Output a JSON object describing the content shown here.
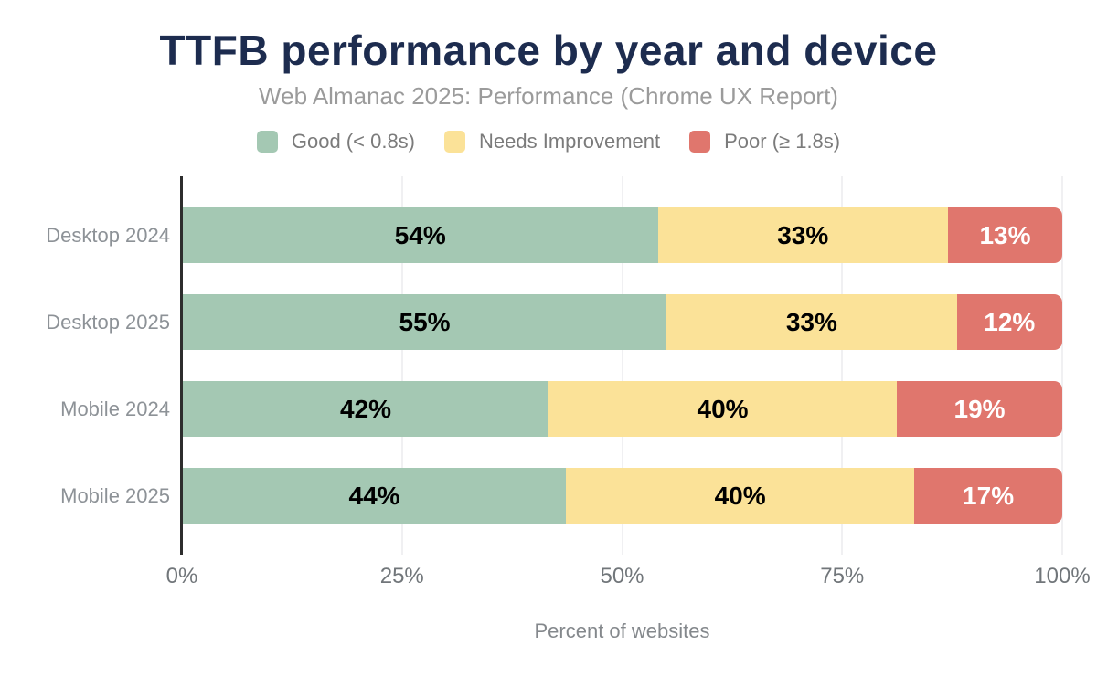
{
  "header": {
    "title": "TTFB performance by year and device",
    "subtitle": "Web Almanac 2025: Performance (Chrome UX Report)"
  },
  "legend": [
    {
      "label": "Good (< 0.8s)",
      "color": "#a4c8b3"
    },
    {
      "label": "Needs Improvement",
      "color": "#fbe298"
    },
    {
      "label": "Poor (≥ 1.8s)",
      "color": "#e0766d"
    }
  ],
  "colors": {
    "good": "#a4c8b3",
    "needs_improvement": "#fbe298",
    "poor": "#e0766d",
    "title": "#1d2c4f",
    "subtitle": "#9b9b9b",
    "axis_line": "#2d2d2d",
    "gridline": "#f0f0f2",
    "category_label": "#8d9297",
    "tick_label": "#71767a"
  },
  "chart_data": {
    "type": "bar",
    "orientation": "horizontal",
    "stacked": true,
    "title": "TTFB performance by year and device",
    "subtitle": "Web Almanac 2025: Performance (Chrome UX Report)",
    "categories": [
      "Desktop 2024",
      "Desktop 2025",
      "Mobile 2024",
      "Mobile 2025"
    ],
    "series": [
      {
        "name": "Good (< 0.8s)",
        "color": "#a4c8b3",
        "label_color": "#000000",
        "values": [
          54,
          55,
          42,
          44
        ]
      },
      {
        "name": "Needs Improvement",
        "color": "#fbe298",
        "label_color": "#000000",
        "values": [
          33,
          33,
          40,
          40
        ]
      },
      {
        "name": "Poor (≥ 1.8s)",
        "color": "#e0766d",
        "label_color": "#ffffff",
        "values": [
          13,
          12,
          19,
          17
        ]
      }
    ],
    "data_labels": [
      [
        "54%",
        "33%",
        "13%"
      ],
      [
        "55%",
        "33%",
        "12%"
      ],
      [
        "42%",
        "40%",
        "19%"
      ],
      [
        "44%",
        "40%",
        "17%"
      ]
    ],
    "xlabel": "Percent of websites",
    "x_ticks": [
      "0%",
      "25%",
      "50%",
      "75%",
      "100%"
    ],
    "xlim": [
      0,
      100
    ],
    "grid": "vertical-only",
    "legend_position": "top"
  }
}
